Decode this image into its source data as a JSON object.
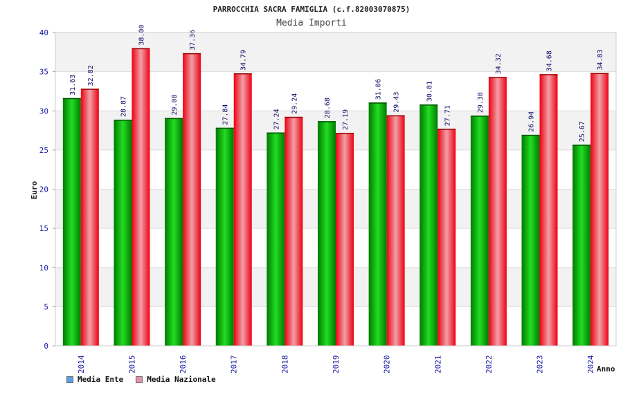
{
  "chart_data": {
    "type": "bar",
    "title": "PARROCCHIA SACRA FAMIGLIA (c.f.82003070875)",
    "subtitle": "Media Importi",
    "xlabel": "Anno",
    "ylabel": "Euro",
    "ylim": [
      0,
      40
    ],
    "yticks": [
      0,
      5,
      10,
      15,
      20,
      25,
      30,
      35,
      40
    ],
    "categories": [
      "2014",
      "2015",
      "2016",
      "2017",
      "2018",
      "2019",
      "2020",
      "2021",
      "2022",
      "2023",
      "2024"
    ],
    "series": [
      {
        "name": "Media Ente",
        "values": [
          31.63,
          28.87,
          29.08,
          27.84,
          27.24,
          28.68,
          31.06,
          30.81,
          29.38,
          26.94,
          25.67
        ],
        "labels": [
          "31.63",
          "28.87",
          "29.08",
          "27.84",
          "27.24",
          "28.68",
          "31.06",
          "30.81",
          "29.38",
          "26.94",
          "25.67"
        ]
      },
      {
        "name": "Media Nazionale",
        "values": [
          32.82,
          38.0,
          37.36,
          34.79,
          29.24,
          27.19,
          29.43,
          27.71,
          34.32,
          34.68,
          34.83
        ],
        "labels": [
          "32.82",
          "38.00",
          "37.36",
          "34.79",
          "29.24",
          "27.19",
          "29.43",
          "27.71",
          "34.32",
          "34.68",
          "34.83"
        ]
      }
    ],
    "legend_position": "bottom-left",
    "grid": true
  },
  "colors": {
    "ente_dark": "#007a00",
    "ente_light": "#22dd22",
    "naz_dark": "#ee0011",
    "naz_light": "#f0a0a8",
    "legend_ente": "#5aa0e0",
    "legend_naz": "#e090b0"
  }
}
